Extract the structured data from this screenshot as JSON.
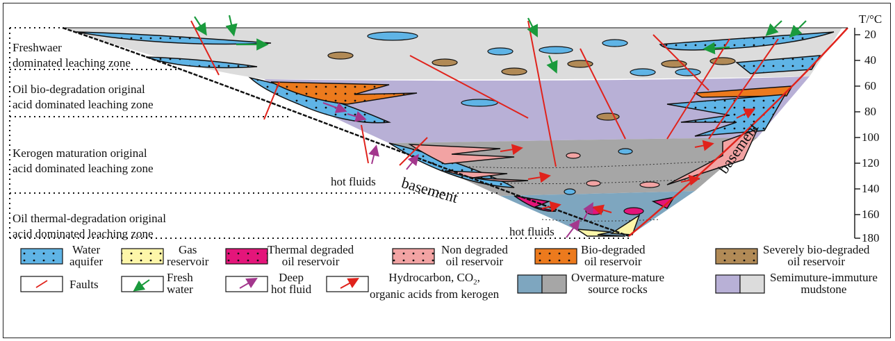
{
  "zones": [
    {
      "line1": "Freshwaer",
      "line2": "dominated leaching zone"
    },
    {
      "line1": "Oil bio-degradation original",
      "line2": "acid dominated leaching zone"
    },
    {
      "line1": "Kerogen maturation  original",
      "line2": "acid dominated leaching zone"
    },
    {
      "line1": "Oil thermal-degradation original",
      "line2": "acid dominated leaching zone"
    }
  ],
  "axis": {
    "title": "T/°C",
    "ticks": [
      "20",
      "40",
      "60",
      "80",
      "100",
      "120",
      "140",
      "160",
      "180"
    ]
  },
  "labels": {
    "basement_left": "basement",
    "basement_right": "basement",
    "hot_fluids_1": "hot fluids",
    "hot_fluids_2": "hot fluids"
  },
  "legend": [
    {
      "line1": "Water",
      "line2": "aquifer"
    },
    {
      "line1": "Gas",
      "line2": "reservoir"
    },
    {
      "line1": "Thermal degraded",
      "line2": "oil reservoir"
    },
    {
      "line1": "Non degraded",
      "line2": "oil reservoir"
    },
    {
      "line1": "Bio-degraded",
      "line2": "oil reservoir"
    },
    {
      "line1": "Severely bio-degraded",
      "line2": "oil reservoir"
    },
    {
      "line1": "Faults",
      "line2": ""
    },
    {
      "line1": "Fresh",
      "line2": "water"
    },
    {
      "line1": "Deep",
      "line2": "hot fluid"
    },
    {
      "line1": "Hydrocarbon, CO",
      "sub": "2",
      "tail": ",",
      "line2": "organic acids from kerogen"
    },
    {
      "line1": "Overmature-mature",
      "line2": "source rocks"
    },
    {
      "line1": "Semimuture-immuture",
      "line2": "mudstone"
    }
  ],
  "colors": {
    "water_aquifer": "#5fb4e6",
    "gas_reservoir": "#fdf6a9",
    "thermal_degraded": "#e4157a",
    "non_degraded": "#f2a3a3",
    "bio_degraded": "#ec7a1d",
    "severely_bio_degraded": "#b18a56",
    "fault": "#e0231c",
    "fresh_water_arrow": "#1a9a3c",
    "hot_fluid_arrow": "#a3378d",
    "overmature_source": "#a6a6a6",
    "source_rock_blue": "#7ea6bf",
    "semimature_mudstone": "#b8b0d6",
    "fresh_zone_fill": "#dcdcdc",
    "basement_line": "#e0231c"
  }
}
